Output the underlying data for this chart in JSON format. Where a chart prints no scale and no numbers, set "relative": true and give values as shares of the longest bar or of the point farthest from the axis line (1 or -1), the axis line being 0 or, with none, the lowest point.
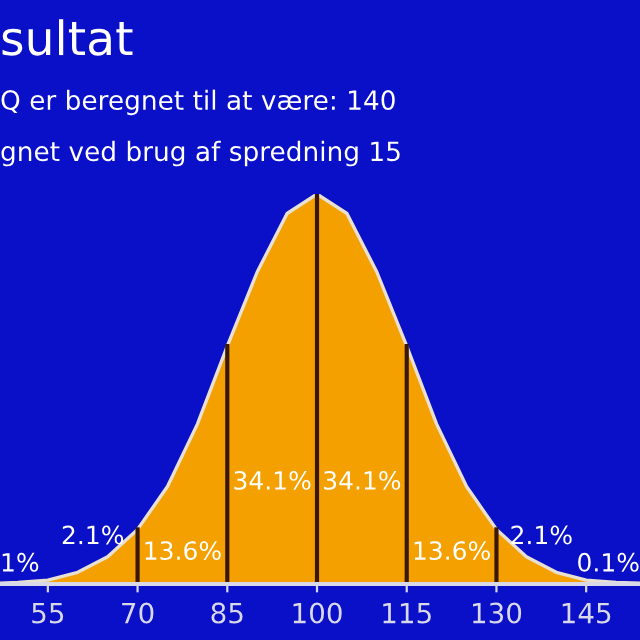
{
  "chart_data": {
    "type": "area",
    "relative": true,
    "title": "sultat",
    "subtitle": "Q er beregnet til at være: 140",
    "x": [
      47,
      50,
      55,
      60,
      65,
      70,
      75,
      80,
      85,
      90,
      95,
      100,
      105,
      110,
      115,
      120,
      125,
      130,
      135,
      140,
      145,
      150,
      154
    ],
    "series": [
      {
        "color": "#f4a000",
        "values": [
          0.002,
          0.004,
          0.01,
          0.03,
          0.07,
          0.14,
          0.25,
          0.41,
          0.61,
          0.8,
          0.95,
          1,
          0.95,
          0.8,
          0.61,
          0.41,
          0.25,
          0.14,
          0.07,
          0.03,
          0.01,
          0.004,
          0.002
        ]
      }
    ],
    "xlim": [
      47,
      154
    ],
    "xticks": [
      55,
      70,
      85,
      100,
      115,
      130,
      145
    ],
    "ref_lines": [
      {
        "axis": "x",
        "value": 70,
        "color": "#3a1800"
      },
      {
        "axis": "x",
        "value": 85,
        "color": "#3a1800"
      },
      {
        "axis": "x",
        "value": 100,
        "color": "#3a1800"
      },
      {
        "axis": "x",
        "value": 115,
        "color": "#3a1800"
      },
      {
        "axis": "x",
        "value": 130,
        "color": "#3a1800"
      }
    ],
    "annotations": [
      "gnet ved brug af spredning 15",
      "1%",
      "2.1%",
      "13.6%",
      "34.1%",
      "34.1%",
      "13.6%",
      "2.1%",
      "0.1%"
    ],
    "grid": false,
    "legend": false
  }
}
